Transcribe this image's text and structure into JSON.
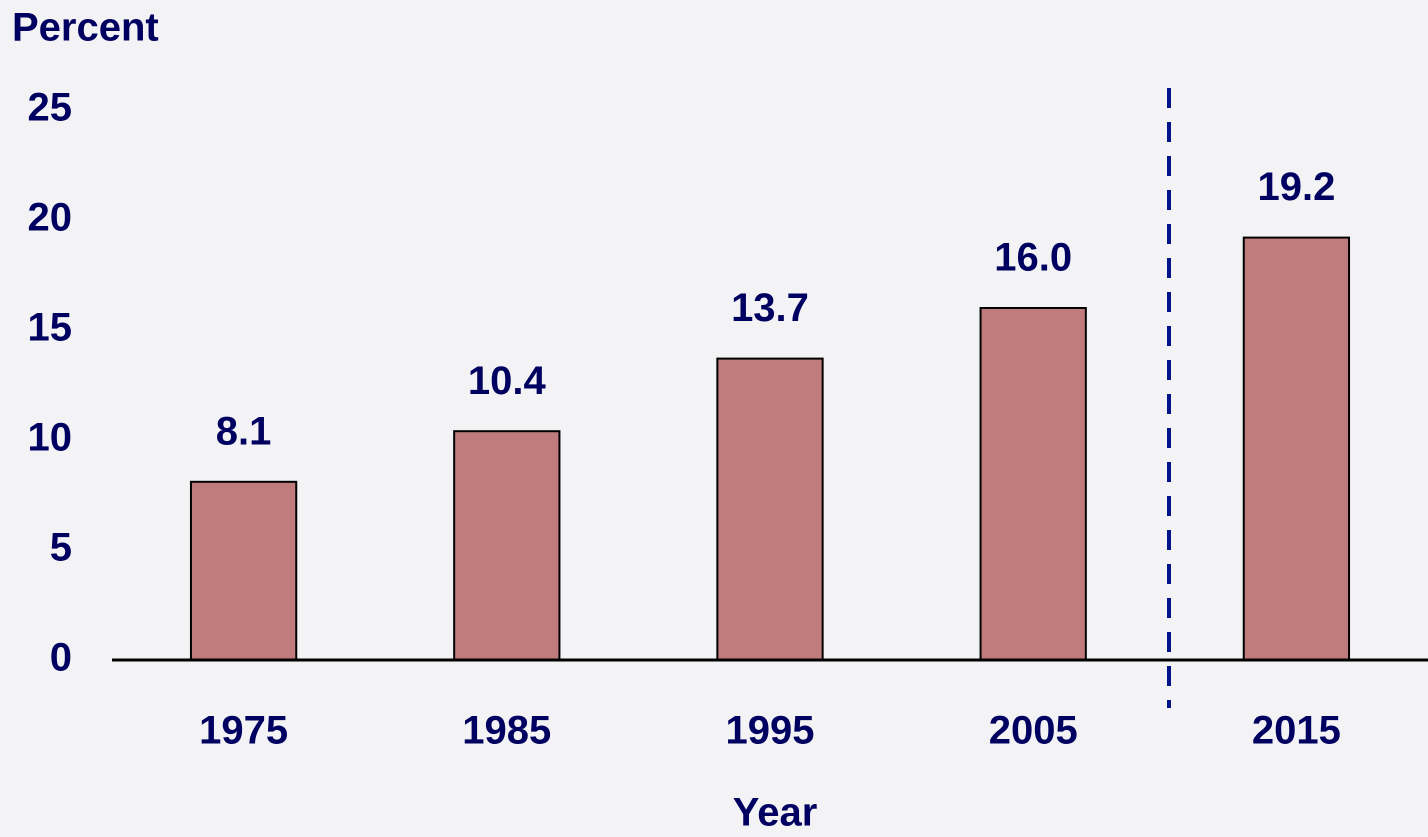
{
  "chart_data": {
    "type": "bar",
    "y_label": "Percent",
    "x_label": "Year",
    "categories": [
      "1975",
      "1985",
      "1995",
      "2005",
      "2015"
    ],
    "values": [
      8.1,
      10.4,
      13.7,
      16.0,
      19.2
    ],
    "value_labels": [
      "8.1",
      "10.4",
      "13.7",
      "16.0",
      "19.2"
    ],
    "color": "#c07c7c",
    "ylim": [
      0,
      25
    ],
    "yticks": [
      0,
      5,
      10,
      15,
      20,
      25
    ],
    "grid": false
  }
}
